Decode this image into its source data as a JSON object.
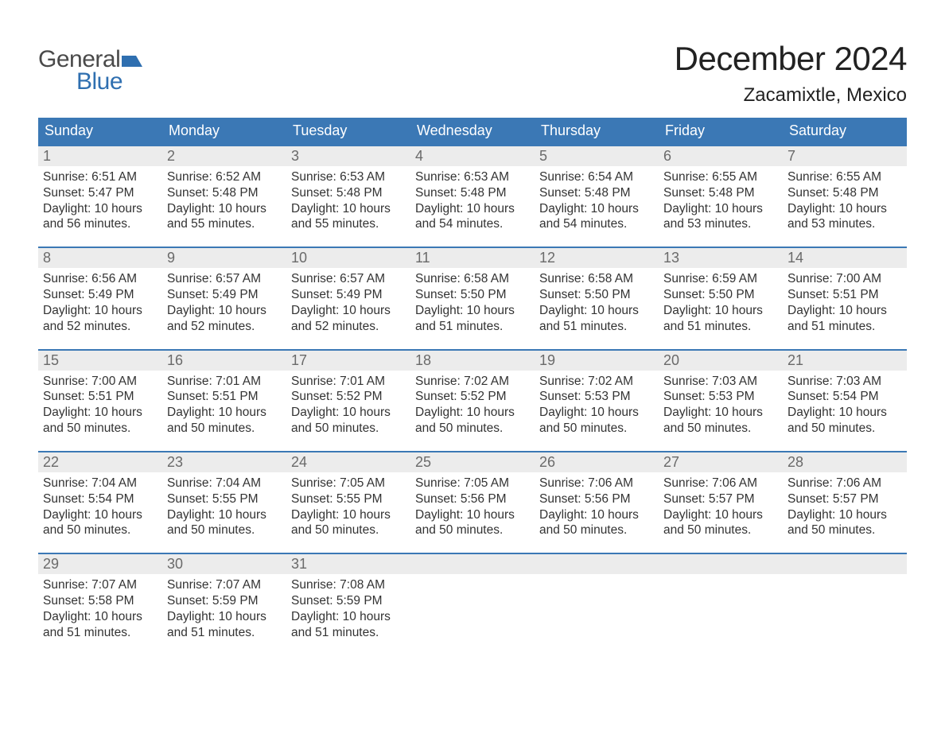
{
  "logo": {
    "text_top": "General",
    "text_bottom": "Blue",
    "flag_color": "#2f6fb0",
    "gray": "#4a4a4a"
  },
  "title": "December 2024",
  "location": "Zacamixtle, Mexico",
  "colors": {
    "header_bg": "#3b78b5",
    "header_fg": "#ffffff",
    "week_border": "#3b78b5",
    "daynum_bg": "#ececec",
    "daynum_fg": "#6a6a6a",
    "body_text": "#333333",
    "page_bg": "#ffffff"
  },
  "weekdays": [
    "Sunday",
    "Monday",
    "Tuesday",
    "Wednesday",
    "Thursday",
    "Friday",
    "Saturday"
  ],
  "weeks": [
    [
      {
        "n": "1",
        "sunrise": "6:51 AM",
        "sunset": "5:47 PM",
        "daylight_l1": "Daylight: 10 hours",
        "daylight_l2": "and 56 minutes."
      },
      {
        "n": "2",
        "sunrise": "6:52 AM",
        "sunset": "5:48 PM",
        "daylight_l1": "Daylight: 10 hours",
        "daylight_l2": "and 55 minutes."
      },
      {
        "n": "3",
        "sunrise": "6:53 AM",
        "sunset": "5:48 PM",
        "daylight_l1": "Daylight: 10 hours",
        "daylight_l2": "and 55 minutes."
      },
      {
        "n": "4",
        "sunrise": "6:53 AM",
        "sunset": "5:48 PM",
        "daylight_l1": "Daylight: 10 hours",
        "daylight_l2": "and 54 minutes."
      },
      {
        "n": "5",
        "sunrise": "6:54 AM",
        "sunset": "5:48 PM",
        "daylight_l1": "Daylight: 10 hours",
        "daylight_l2": "and 54 minutes."
      },
      {
        "n": "6",
        "sunrise": "6:55 AM",
        "sunset": "5:48 PM",
        "daylight_l1": "Daylight: 10 hours",
        "daylight_l2": "and 53 minutes."
      },
      {
        "n": "7",
        "sunrise": "6:55 AM",
        "sunset": "5:48 PM",
        "daylight_l1": "Daylight: 10 hours",
        "daylight_l2": "and 53 minutes."
      }
    ],
    [
      {
        "n": "8",
        "sunrise": "6:56 AM",
        "sunset": "5:49 PM",
        "daylight_l1": "Daylight: 10 hours",
        "daylight_l2": "and 52 minutes."
      },
      {
        "n": "9",
        "sunrise": "6:57 AM",
        "sunset": "5:49 PM",
        "daylight_l1": "Daylight: 10 hours",
        "daylight_l2": "and 52 minutes."
      },
      {
        "n": "10",
        "sunrise": "6:57 AM",
        "sunset": "5:49 PM",
        "daylight_l1": "Daylight: 10 hours",
        "daylight_l2": "and 52 minutes."
      },
      {
        "n": "11",
        "sunrise": "6:58 AM",
        "sunset": "5:50 PM",
        "daylight_l1": "Daylight: 10 hours",
        "daylight_l2": "and 51 minutes."
      },
      {
        "n": "12",
        "sunrise": "6:58 AM",
        "sunset": "5:50 PM",
        "daylight_l1": "Daylight: 10 hours",
        "daylight_l2": "and 51 minutes."
      },
      {
        "n": "13",
        "sunrise": "6:59 AM",
        "sunset": "5:50 PM",
        "daylight_l1": "Daylight: 10 hours",
        "daylight_l2": "and 51 minutes."
      },
      {
        "n": "14",
        "sunrise": "7:00 AM",
        "sunset": "5:51 PM",
        "daylight_l1": "Daylight: 10 hours",
        "daylight_l2": "and 51 minutes."
      }
    ],
    [
      {
        "n": "15",
        "sunrise": "7:00 AM",
        "sunset": "5:51 PM",
        "daylight_l1": "Daylight: 10 hours",
        "daylight_l2": "and 50 minutes."
      },
      {
        "n": "16",
        "sunrise": "7:01 AM",
        "sunset": "5:51 PM",
        "daylight_l1": "Daylight: 10 hours",
        "daylight_l2": "and 50 minutes."
      },
      {
        "n": "17",
        "sunrise": "7:01 AM",
        "sunset": "5:52 PM",
        "daylight_l1": "Daylight: 10 hours",
        "daylight_l2": "and 50 minutes."
      },
      {
        "n": "18",
        "sunrise": "7:02 AM",
        "sunset": "5:52 PM",
        "daylight_l1": "Daylight: 10 hours",
        "daylight_l2": "and 50 minutes."
      },
      {
        "n": "19",
        "sunrise": "7:02 AM",
        "sunset": "5:53 PM",
        "daylight_l1": "Daylight: 10 hours",
        "daylight_l2": "and 50 minutes."
      },
      {
        "n": "20",
        "sunrise": "7:03 AM",
        "sunset": "5:53 PM",
        "daylight_l1": "Daylight: 10 hours",
        "daylight_l2": "and 50 minutes."
      },
      {
        "n": "21",
        "sunrise": "7:03 AM",
        "sunset": "5:54 PM",
        "daylight_l1": "Daylight: 10 hours",
        "daylight_l2": "and 50 minutes."
      }
    ],
    [
      {
        "n": "22",
        "sunrise": "7:04 AM",
        "sunset": "5:54 PM",
        "daylight_l1": "Daylight: 10 hours",
        "daylight_l2": "and 50 minutes."
      },
      {
        "n": "23",
        "sunrise": "7:04 AM",
        "sunset": "5:55 PM",
        "daylight_l1": "Daylight: 10 hours",
        "daylight_l2": "and 50 minutes."
      },
      {
        "n": "24",
        "sunrise": "7:05 AM",
        "sunset": "5:55 PM",
        "daylight_l1": "Daylight: 10 hours",
        "daylight_l2": "and 50 minutes."
      },
      {
        "n": "25",
        "sunrise": "7:05 AM",
        "sunset": "5:56 PM",
        "daylight_l1": "Daylight: 10 hours",
        "daylight_l2": "and 50 minutes."
      },
      {
        "n": "26",
        "sunrise": "7:06 AM",
        "sunset": "5:56 PM",
        "daylight_l1": "Daylight: 10 hours",
        "daylight_l2": "and 50 minutes."
      },
      {
        "n": "27",
        "sunrise": "7:06 AM",
        "sunset": "5:57 PM",
        "daylight_l1": "Daylight: 10 hours",
        "daylight_l2": "and 50 minutes."
      },
      {
        "n": "28",
        "sunrise": "7:06 AM",
        "sunset": "5:57 PM",
        "daylight_l1": "Daylight: 10 hours",
        "daylight_l2": "and 50 minutes."
      }
    ],
    [
      {
        "n": "29",
        "sunrise": "7:07 AM",
        "sunset": "5:58 PM",
        "daylight_l1": "Daylight: 10 hours",
        "daylight_l2": "and 51 minutes."
      },
      {
        "n": "30",
        "sunrise": "7:07 AM",
        "sunset": "5:59 PM",
        "daylight_l1": "Daylight: 10 hours",
        "daylight_l2": "and 51 minutes."
      },
      {
        "n": "31",
        "sunrise": "7:08 AM",
        "sunset": "5:59 PM",
        "daylight_l1": "Daylight: 10 hours",
        "daylight_l2": "and 51 minutes."
      },
      null,
      null,
      null,
      null
    ]
  ],
  "labels": {
    "sunrise_prefix": "Sunrise: ",
    "sunset_prefix": "Sunset: "
  }
}
